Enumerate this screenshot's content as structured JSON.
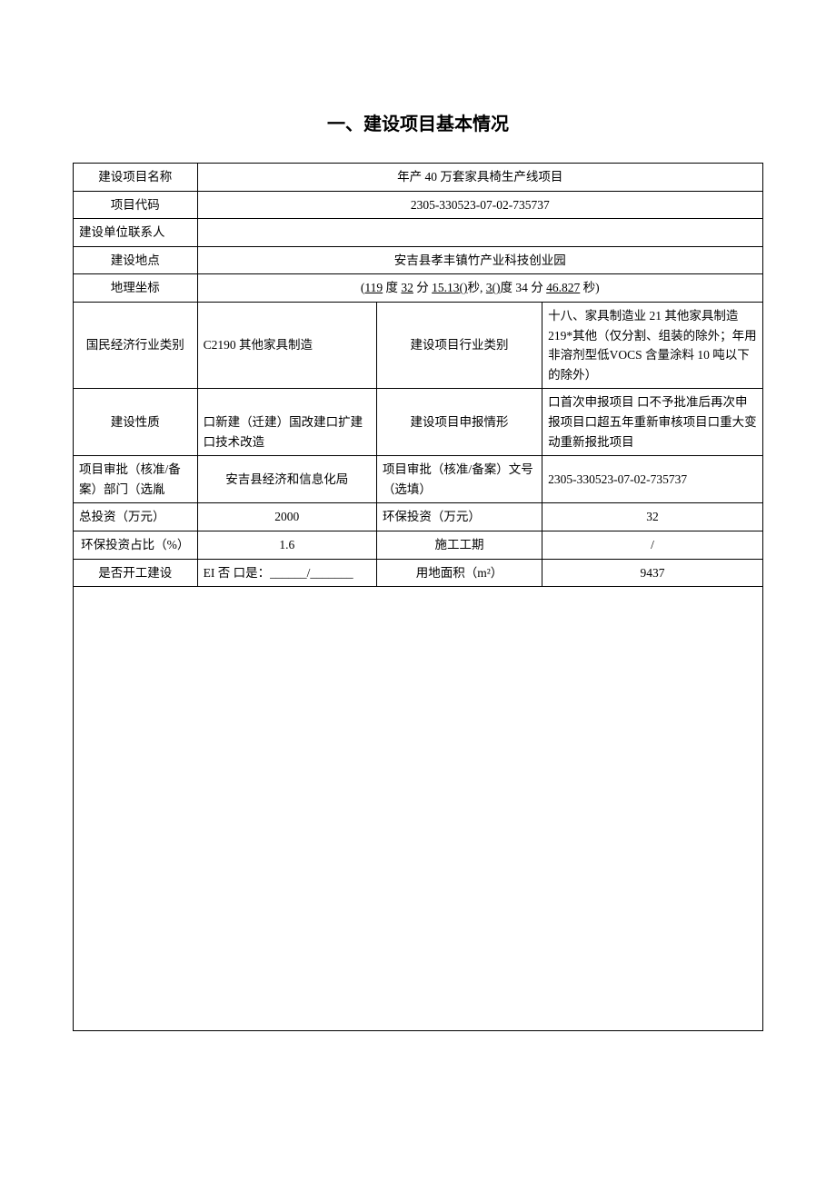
{
  "title": "一、建设项目基本情况",
  "rows": {
    "r1": {
      "label": "建设项目名称",
      "value": "年产 40 万套家具椅生产线项目"
    },
    "r2": {
      "label": "项目代码",
      "value": "2305-330523-07-02-735737"
    },
    "r3": {
      "label": "建设单位联系人",
      "value": ""
    },
    "r4": {
      "label": "建设地点",
      "value": "安吉县孝丰镇竹产业科技创业园"
    },
    "r5": {
      "label": "地理坐标",
      "parts": {
        "p1": "(",
        "u1": "119",
        "p2": " 度 ",
        "u2": "32",
        "p3": " 分 ",
        "u3": "15.13()",
        "p4": "秒, ",
        "u4": "3()",
        "p5": "度 34 分 ",
        "u5": "46.827",
        "p6": " 秒)"
      }
    },
    "r6": {
      "label1": "国民经济行业类别",
      "value1": "C2190 其他家具制造",
      "label2": "建设项目行业类别",
      "value2": "十八、家具制造业 21 其他家具制造 219*其他（仅分割、组装的除外；年用非溶剂型低VOCS 含量涂料 10 吨以下的除外）"
    },
    "r7": {
      "label1": "建设性质",
      "value1": "口新建（迁建）国改建口扩建口技术改造",
      "label2": "建设项目申报情形",
      "value2": "口首次申报项目\n口不予批准后再次申报项目口超五年重新审核项目口重大变动重新报批项目"
    },
    "r8": {
      "label1": "项目审批（核准/备案）部门（选胤",
      "value1": "安吉县经济和信息化局",
      "label2": "项目审批（核准/备案）文号（选填）",
      "value2": "2305-330523-07-02-735737"
    },
    "r9": {
      "label1": "总投资（万元）",
      "value1": "2000",
      "label2": "环保投资（万元）",
      "value2": "32"
    },
    "r10": {
      "label1": "环保投资占比（%）",
      "value1": "1.6",
      "label2": "施工工期",
      "value2": "/"
    },
    "r11": {
      "label1": "是否开工建设",
      "value1": "EI 否\n口是：______/_______",
      "label2": "用地面积（m²）",
      "value2": "9437"
    }
  }
}
